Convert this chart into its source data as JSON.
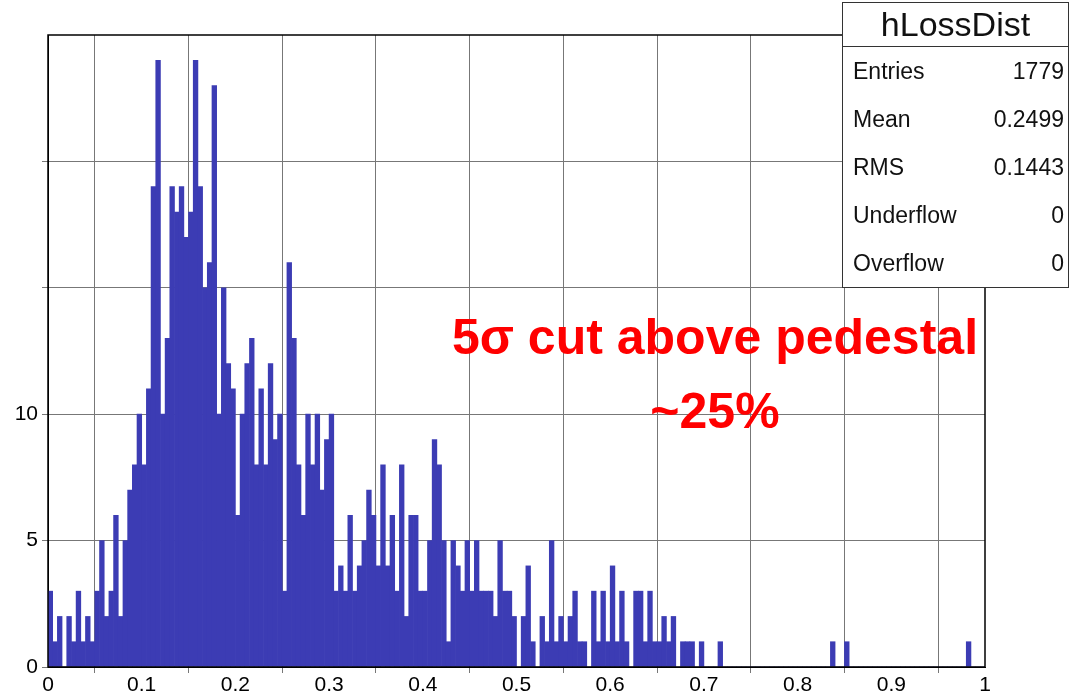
{
  "chart_data": {
    "type": "histogram",
    "title": "hLossDist",
    "bins": [
      0,
      0.005,
      0.01,
      0.015,
      0.02,
      0.025,
      0.03,
      0.035,
      0.04,
      0.045,
      0.05,
      0.055,
      0.06,
      0.065,
      0.07,
      0.075,
      0.08,
      0.085,
      0.09,
      0.095,
      0.1,
      0.105,
      0.11,
      0.115,
      0.12,
      0.125,
      0.13,
      0.135,
      0.14,
      0.145,
      0.15,
      0.155,
      0.16,
      0.165,
      0.17,
      0.175,
      0.18,
      0.185,
      0.19,
      0.195,
      0.2,
      0.205,
      0.21,
      0.215,
      0.22,
      0.225,
      0.23,
      0.235,
      0.24,
      0.245,
      0.25,
      0.255,
      0.26,
      0.265,
      0.27,
      0.275,
      0.28,
      0.285,
      0.29,
      0.295,
      0.3,
      0.305,
      0.31,
      0.315,
      0.32,
      0.325,
      0.33,
      0.335,
      0.34,
      0.345,
      0.35,
      0.355,
      0.36,
      0.365,
      0.37,
      0.375,
      0.38,
      0.385,
      0.39,
      0.395,
      0.4,
      0.405,
      0.41,
      0.415,
      0.42,
      0.425,
      0.43,
      0.435,
      0.44,
      0.445,
      0.45,
      0.455,
      0.46,
      0.465,
      0.47,
      0.475,
      0.48,
      0.485,
      0.49,
      0.495,
      0.5,
      0.505,
      0.51,
      0.515,
      0.52,
      0.525,
      0.53,
      0.535,
      0.54,
      0.545,
      0.55,
      0.555,
      0.56,
      0.565,
      0.57,
      0.575,
      0.58,
      0.585,
      0.59,
      0.595,
      0.6,
      0.605,
      0.61,
      0.615,
      0.62,
      0.625,
      0.63,
      0.635,
      0.64,
      0.645,
      0.65,
      0.655,
      0.66,
      0.665,
      0.67,
      0.675,
      0.68,
      0.685,
      0.69,
      0.695,
      0.7,
      0.705,
      0.71,
      0.715,
      0.72,
      0.725,
      0.73,
      0.735,
      0.74,
      0.745,
      0.75,
      0.755,
      0.76,
      0.765,
      0.77,
      0.775,
      0.78,
      0.785,
      0.79,
      0.795,
      0.8,
      0.805,
      0.81,
      0.815,
      0.82,
      0.825,
      0.83,
      0.835,
      0.84,
      0.845,
      0.85,
      0.855,
      0.86,
      0.865,
      0.87,
      0.875,
      0.88,
      0.885,
      0.89,
      0.895,
      0.9,
      0.905,
      0.91,
      0.915,
      0.92,
      0.925,
      0.93,
      0.935,
      0.94,
      0.945,
      0.95,
      0.955,
      0.96,
      0.965,
      0.97,
      0.975,
      0.98,
      0.985,
      0.99,
      0.995,
      1
    ],
    "values": [
      3,
      1,
      2,
      0,
      2,
      1,
      3,
      1,
      2,
      1,
      3,
      5,
      2,
      3,
      6,
      2,
      5,
      7,
      8,
      10,
      8,
      11,
      19,
      24,
      10,
      13,
      19,
      18,
      19,
      17,
      18,
      24,
      19,
      15,
      16,
      23,
      10,
      15,
      12,
      11,
      6,
      10,
      12,
      13,
      8,
      11,
      8,
      12,
      9,
      10,
      3,
      16,
      13,
      8,
      6,
      10,
      8,
      10,
      7,
      9,
      10,
      3,
      4,
      3,
      6,
      3,
      4,
      5,
      7,
      6,
      4,
      8,
      4,
      6,
      3,
      8,
      2,
      6,
      6,
      3,
      3,
      5,
      9,
      8,
      5,
      1,
      5,
      4,
      3,
      5,
      3,
      5,
      3,
      3,
      3,
      2,
      5,
      3,
      3,
      2,
      0,
      2,
      4,
      1,
      0,
      2,
      1,
      5,
      1,
      2,
      1,
      2,
      3,
      1,
      1,
      0,
      3,
      1,
      3,
      1,
      4,
      1,
      3,
      1,
      0,
      3,
      3,
      1,
      3,
      1,
      1,
      2,
      1,
      2,
      0,
      1,
      1,
      1,
      0,
      1,
      0,
      0,
      0,
      1,
      0,
      0,
      0,
      0,
      0,
      0,
      0,
      0,
      0,
      0,
      0,
      0,
      0,
      0,
      0,
      0,
      0,
      0,
      0,
      0,
      0,
      0,
      0,
      1,
      0,
      0,
      1,
      0,
      0,
      0,
      0,
      0,
      0,
      0,
      0,
      0,
      0,
      0,
      0,
      0,
      0,
      0,
      0,
      0,
      0,
      0,
      0,
      0,
      0,
      0,
      0,
      0,
      1,
      0,
      0,
      0
    ],
    "color": "#3c3cb4",
    "xlim": [
      0,
      1
    ],
    "xticks": [
      0,
      0.1,
      0.2,
      0.3,
      0.4,
      0.5,
      0.6,
      0.7,
      0.8,
      0.9,
      1
    ],
    "ylim": [
      0,
      25
    ],
    "yticks": [
      0,
      5,
      10,
      {
        "value": 15,
        "label": null
      },
      {
        "value": 20,
        "label": null
      }
    ],
    "grid": true,
    "legend": false,
    "annotations": [
      "Entries 1779",
      "Mean 0.2499",
      "RMS 0.1443",
      "Underflow 0",
      "Overflow 0",
      "5σ cut above pedestal\n~25%"
    ]
  }
}
